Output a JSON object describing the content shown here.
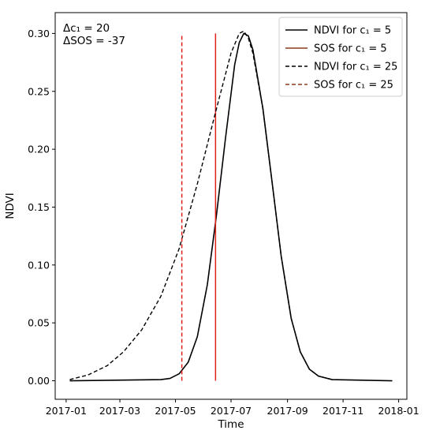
{
  "chart_data": {
    "type": "line",
    "title": "",
    "xlabel": "Time",
    "ylabel": "NDVI",
    "xlim": [
      "2016-12-20",
      "2018-01-10"
    ],
    "ylim": [
      -0.016,
      0.318
    ],
    "grid": false,
    "legend_position": "top-right",
    "x_ticks": [
      "2017-01",
      "2017-03",
      "2017-05",
      "2017-07",
      "2017-09",
      "2017-11",
      "2018-01"
    ],
    "y_ticks": [
      "0.00",
      "0.05",
      "0.10",
      "0.15",
      "0.20",
      "0.25",
      "0.30"
    ],
    "annotations": [
      {
        "text": "Δc₁ = 20",
        "position": "top-left"
      },
      {
        "text": "ΔSOS = -37",
        "position": "top-left"
      }
    ],
    "series": [
      {
        "name": "NDVI for c₁ = 5",
        "style": "solid",
        "color": "#000000",
        "x": [
          "2017-01-05",
          "2017-04-15",
          "2017-04-25",
          "2017-05-05",
          "2017-05-15",
          "2017-05-25",
          "2017-06-05",
          "2017-06-15",
          "2017-06-25",
          "2017-07-05",
          "2017-07-10",
          "2017-07-15",
          "2017-07-20",
          "2017-07-25",
          "2017-08-05",
          "2017-08-15",
          "2017-08-25",
          "2017-09-05",
          "2017-09-15",
          "2017-09-25",
          "2017-10-05",
          "2017-10-20",
          "2017-12-25"
        ],
        "y": [
          0.0,
          0.001,
          0.002,
          0.006,
          0.016,
          0.038,
          0.083,
          0.143,
          0.21,
          0.273,
          0.292,
          0.3,
          0.298,
          0.286,
          0.235,
          0.172,
          0.108,
          0.054,
          0.025,
          0.01,
          0.004,
          0.001,
          0.0
        ]
      },
      {
        "name": "SOS for c₁ = 5",
        "style": "vline-solid",
        "color": "#8b3a1a",
        "x": "2017-06-14"
      },
      {
        "name": "NDVI for c₁ = 25",
        "style": "dashed",
        "color": "#000000",
        "x": [
          "2017-01-05",
          "2017-01-25",
          "2017-02-15",
          "2017-03-05",
          "2017-03-25",
          "2017-04-15",
          "2017-05-05",
          "2017-05-25",
          "2017-06-15",
          "2017-07-01",
          "2017-07-10",
          "2017-07-15",
          "2017-07-20",
          "2017-07-25",
          "2017-08-05",
          "2017-08-15",
          "2017-08-25",
          "2017-09-05",
          "2017-09-15",
          "2017-09-25",
          "2017-10-05",
          "2017-10-20"
        ],
        "y": [
          0.001,
          0.005,
          0.013,
          0.025,
          0.044,
          0.073,
          0.114,
          0.17,
          0.235,
          0.283,
          0.3,
          0.302,
          0.296,
          0.283,
          0.235,
          0.172,
          0.108,
          0.054,
          0.025,
          0.01,
          0.004,
          0.001
        ]
      },
      {
        "name": "SOS for c₁ = 25",
        "style": "vline-dashed",
        "color": "#8b3a1a",
        "x": "2017-05-08"
      }
    ]
  }
}
